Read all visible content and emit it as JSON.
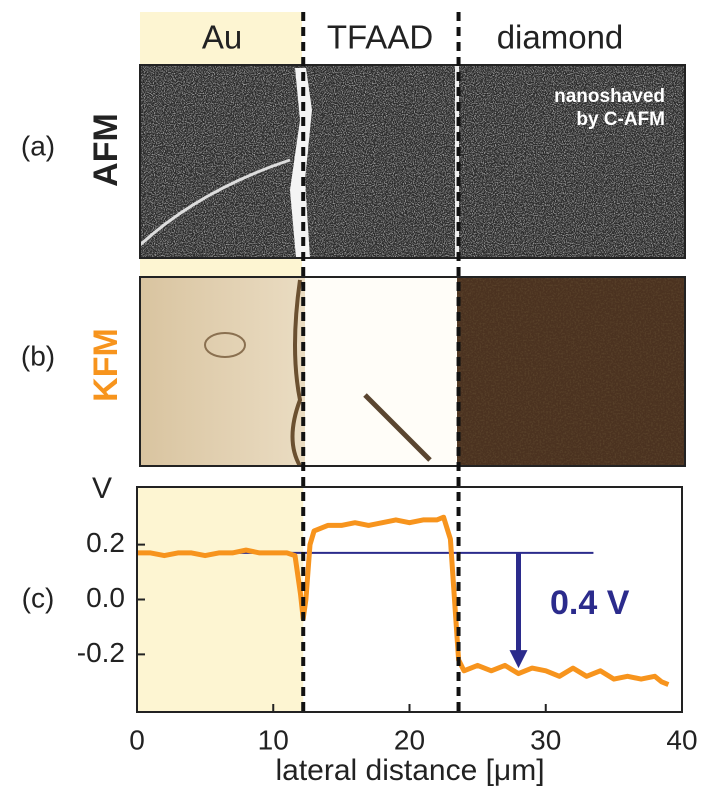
{
  "chart_data": {
    "type": "line",
    "column_labels": [
      "Au",
      "TFAAD",
      "diamond"
    ],
    "panel_labels": [
      "(a)",
      "(b)",
      "(c)"
    ],
    "image_labels": [
      "AFM",
      "KFM"
    ],
    "image_annotation": [
      "nanoshaved",
      "by C-AFM"
    ],
    "ylabel": "V",
    "xlabel": "lateral distance [μm]",
    "annotation": "0.4 V",
    "xlim": [
      0,
      40
    ],
    "xticks": [
      0,
      10,
      20,
      30,
      40
    ],
    "ylim": [
      -0.41,
      0.41
    ],
    "yticks": [
      0.2,
      {
        "value": 0,
        "label": "0.0"
      },
      -0.2
    ],
    "boundaries": [
      12.2,
      23.6
    ],
    "reference_level": 0.17,
    "reference_span": [
      7.5,
      33.5
    ],
    "arrow": {
      "x": 28,
      "from": 0.17,
      "to": -0.25
    },
    "x": [
      0,
      1,
      2,
      3,
      4,
      5,
      6,
      7,
      8,
      9,
      10,
      11,
      11.6,
      12,
      12.2,
      12.4,
      12.7,
      13,
      14,
      15,
      16,
      17,
      18,
      19,
      20,
      21,
      22,
      22.5,
      23,
      23.3,
      23.6,
      24,
      25,
      26,
      27,
      28,
      29,
      30,
      31,
      32,
      33,
      34,
      35,
      36,
      37,
      38,
      38.5,
      39
    ],
    "series": [
      {
        "color": "#f7941d",
        "values": [
          0.17,
          0.17,
          0.16,
          0.17,
          0.17,
          0.16,
          0.17,
          0.17,
          0.18,
          0.17,
          0.17,
          0.17,
          0.16,
          0.02,
          -0.07,
          0.0,
          0.2,
          0.25,
          0.27,
          0.27,
          0.28,
          0.27,
          0.28,
          0.29,
          0.28,
          0.29,
          0.29,
          0.3,
          0.22,
          0.0,
          -0.22,
          -0.26,
          -0.24,
          -0.26,
          -0.24,
          -0.27,
          -0.25,
          -0.26,
          -0.28,
          -0.25,
          -0.28,
          -0.26,
          -0.29,
          -0.28,
          -0.29,
          -0.28,
          -0.3,
          -0.31
        ]
      }
    ]
  }
}
